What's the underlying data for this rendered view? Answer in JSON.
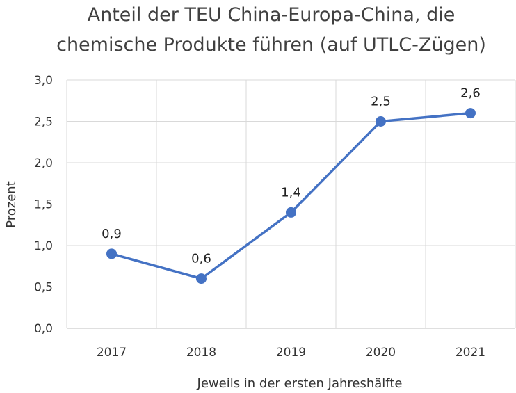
{
  "chart_data": {
    "type": "line",
    "title_lines": [
      "Anteil der TEU China-Europa-China, die",
      "chemische Produkte führen (auf UTLC-Zügen)"
    ],
    "xlabel": "Jeweils in der ersten Jahreshälfte",
    "ylabel": "Prozent",
    "categories": [
      "2017",
      "2018",
      "2019",
      "2020",
      "2021"
    ],
    "y_ticks": [
      "0,0",
      "0,5",
      "1,0",
      "1,5",
      "2,0",
      "2,5",
      "3,0"
    ],
    "ylim": [
      0,
      3
    ],
    "grid": "vertical and horizontal",
    "series": [
      {
        "values": [
          0.9,
          0.6,
          1.4,
          2.5,
          2.6
        ],
        "labels": [
          "0,9",
          "0,6",
          "1,4",
          "2,5",
          "2,6"
        ],
        "color": "#4472C4"
      }
    ]
  }
}
